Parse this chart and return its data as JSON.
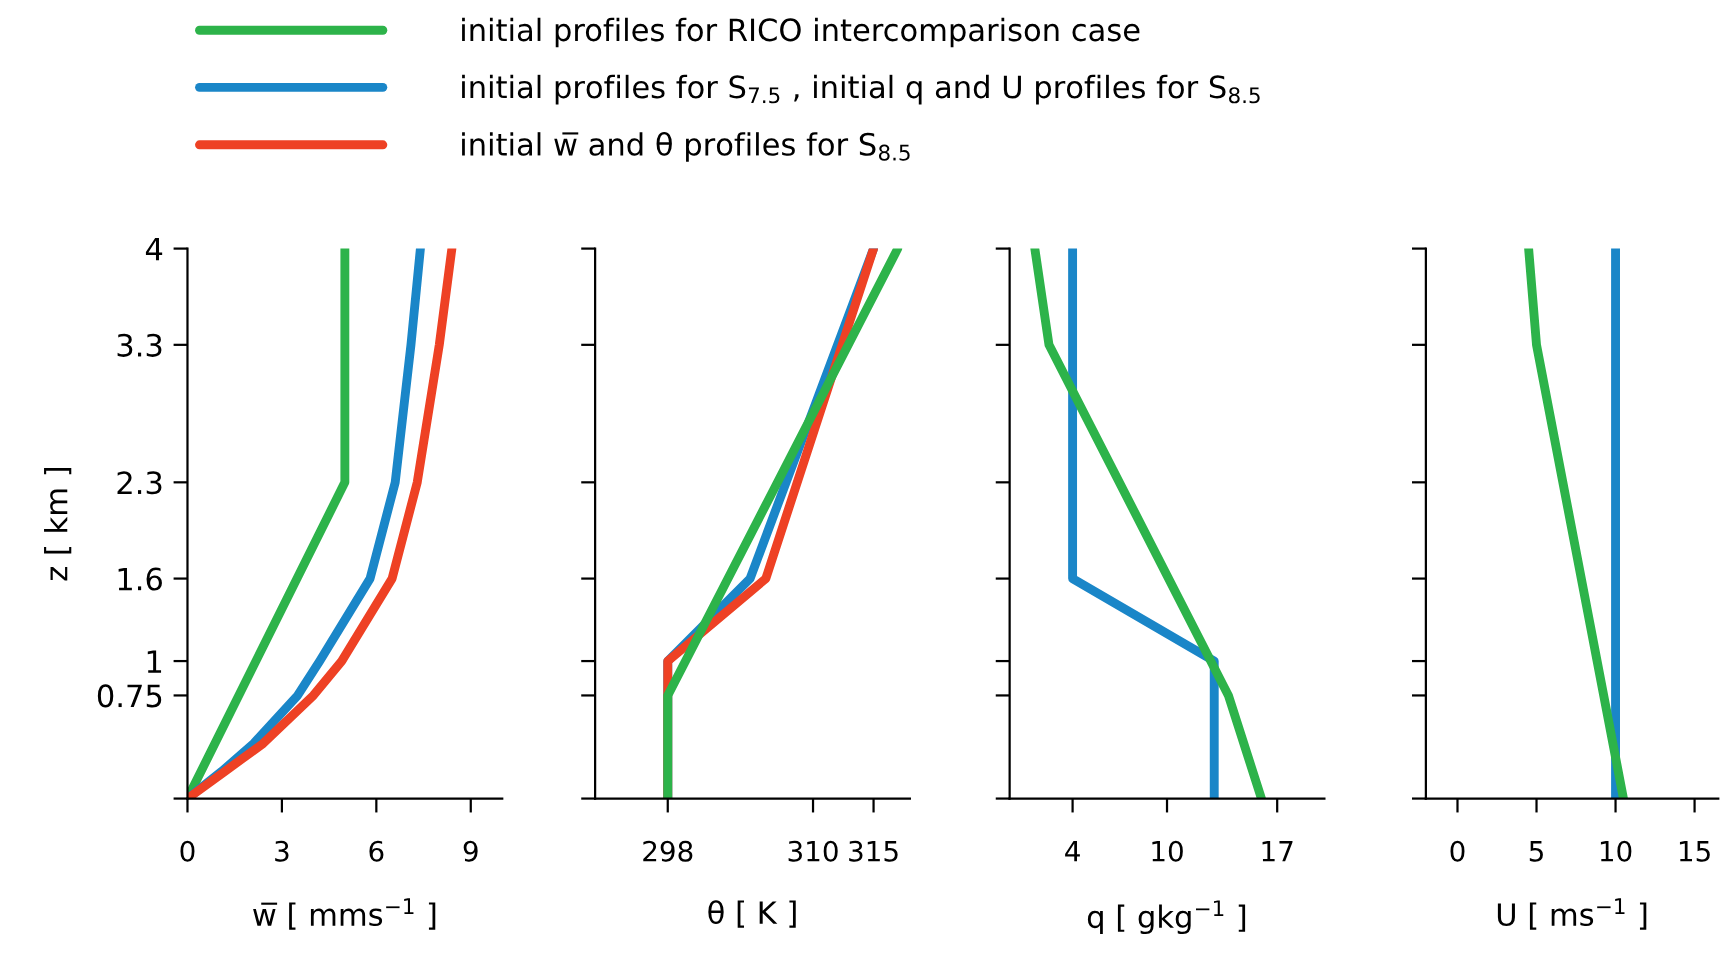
{
  "chart_data": [
    {
      "type": "line",
      "xlabel": "w̅ [ mms$^{−1}$ ]",
      "ylabel": "z [ km ]",
      "legend": "top",
      "xlim": [
        0,
        10
      ],
      "xticks": [
        0,
        3,
        6,
        9
      ],
      "ylim": [
        0,
        4
      ],
      "yticks": [
        {
          "value": 0,
          "label": null
        },
        0.75,
        1,
        1.6,
        2.3,
        3.3,
        4
      ],
      "series": [
        {
          "name": "initial profiles for RICO intercomparison case",
          "color": "#2db34a",
          "x": [
            0,
            5,
            5
          ],
          "values": [
            0,
            2.3,
            4
          ]
        },
        {
          "name": "initial profiles for S$_{7.5}$ , initial q and U profiles for S$_{8.5}$",
          "color": "#1a86c8",
          "x": [
            0,
            1.1,
            2.1,
            3.5,
            4.2,
            5.8,
            6.6,
            7.1,
            7.4
          ],
          "values": [
            0,
            0.2,
            0.4,
            0.75,
            1,
            1.6,
            2.3,
            3.3,
            4
          ]
        },
        {
          "name": "initial w̅ and θ profiles for S$_{8.5}$",
          "color": "#ee4124",
          "x": [
            0,
            1.2,
            2.4,
            4.0,
            4.9,
            6.5,
            7.3,
            8.0,
            8.4
          ],
          "values": [
            0,
            0.2,
            0.4,
            0.75,
            1,
            1.6,
            2.3,
            3.3,
            4
          ]
        }
      ]
    },
    {
      "type": "line",
      "xlabel": "θ [ K ]",
      "tick_labels": "x",
      "xlim": [
        292,
        318
      ],
      "xticks": [
        298,
        310,
        315
      ],
      "ylim": [
        0,
        4
      ],
      "yticks": [
        0,
        0.75,
        1,
        1.6,
        2.3,
        3.3,
        4
      ],
      "series": [
        {
          "color": "#1a86c8",
          "x": [
            298,
            298,
            304.8,
            315
          ],
          "values": [
            0,
            1,
            1.6,
            4
          ]
        },
        {
          "color": "#ee4124",
          "x": [
            298,
            298,
            306.1,
            315
          ],
          "values": [
            0,
            1,
            1.6,
            4
          ]
        },
        {
          "color": "#2db34a",
          "x": [
            298,
            298,
            317
          ],
          "values": [
            0,
            0.75,
            4
          ]
        }
      ]
    },
    {
      "type": "line",
      "xlabel": "q [ gkg$^{−1}$ ]",
      "tick_labels": "x",
      "xlim": [
        0,
        20
      ],
      "xticks": [
        4,
        10,
        17
      ],
      "ylim": [
        0,
        4
      ],
      "yticks": [
        0,
        0.75,
        1,
        1.6,
        2.3,
        3.3,
        4
      ],
      "series": [
        {
          "color": "#1a86c8",
          "x": [
            13,
            13,
            4,
            4
          ],
          "values": [
            0,
            1,
            1.6,
            4
          ]
        },
        {
          "color": "#2db34a",
          "x": [
            16,
            13.9,
            2.5,
            1.6
          ],
          "values": [
            0,
            0.75,
            3.3,
            4
          ]
        }
      ]
    },
    {
      "type": "line",
      "xlabel": "U [ ms$^{−1}$ ]",
      "tick_labels": "x",
      "xlim": [
        -2,
        16.5
      ],
      "xticks": [
        0,
        5,
        10,
        15
      ],
      "ylim": [
        0,
        4
      ],
      "yticks": [
        0,
        0.75,
        1,
        1.6,
        2.3,
        3.3,
        4
      ],
      "series": [
        {
          "color": "#1a86c8",
          "x": [
            10,
            10
          ],
          "values": [
            0,
            4
          ]
        },
        {
          "color": "#2db34a",
          "x": [
            10.5,
            5,
            4.5
          ],
          "values": [
            0,
            3.3,
            4
          ]
        }
      ]
    }
  ]
}
